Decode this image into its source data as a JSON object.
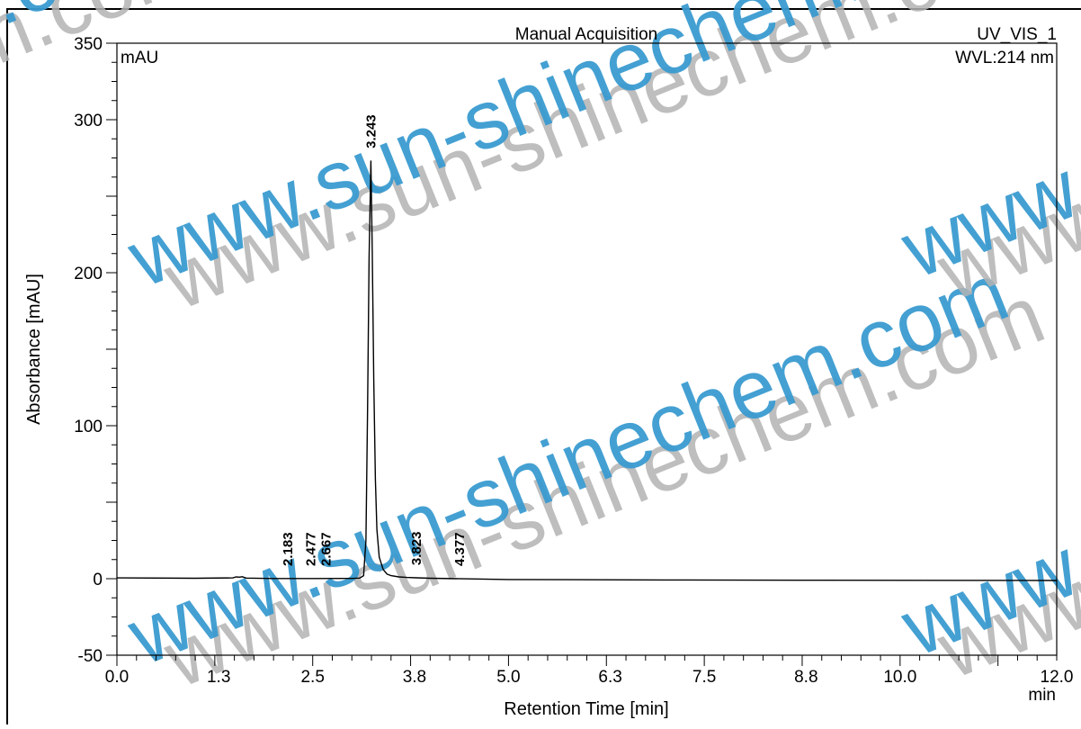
{
  "header": {
    "method": "Manual Acquisition",
    "channel": "UV_VIS_1",
    "wavelength": "WVL:214 nm"
  },
  "watermark": {
    "text": "www.sun-shinechem.com",
    "primary_color": "#3a9bd0",
    "secondary_color": "#b3b3b3"
  },
  "colors": {
    "trace": "#000000",
    "frame": "#000000",
    "background": "#ffffff"
  },
  "chart_data": {
    "type": "line",
    "title": "",
    "xlabel": "Retention Time [min]",
    "ylabel": "Absorbance [mAU]",
    "x_unit": "min",
    "y_unit": "mAU",
    "xlim": [
      0,
      12
    ],
    "ylim": [
      -50,
      350
    ],
    "x_ticks": [
      "0.0",
      "1.3",
      "2.5",
      "3.8",
      "5.0",
      "6.3",
      "7.5",
      "8.8",
      "10.0",
      "12.0"
    ],
    "y_ticks": [
      "-50",
      "0",
      "100",
      "200",
      "300",
      "350"
    ],
    "grid": false,
    "peaks": [
      {
        "label": "2.183",
        "rt": 2.183,
        "height": 0
      },
      {
        "label": "2.477",
        "rt": 2.477,
        "height": 0
      },
      {
        "label": "2.667",
        "rt": 2.667,
        "height": 0
      },
      {
        "label": "3.243",
        "rt": 3.243,
        "height": 273
      },
      {
        "label": "3.823",
        "rt": 3.823,
        "height": 0.5
      },
      {
        "label": "4.377",
        "rt": 4.377,
        "height": 0
      }
    ],
    "series": [
      {
        "x": [
          0.0,
          1.0,
          1.48,
          1.52,
          1.56,
          1.6,
          1.65,
          2.0,
          2.5,
          3.0,
          3.1,
          3.15,
          3.18,
          3.2,
          3.22,
          3.243,
          3.26,
          3.28,
          3.3,
          3.32,
          3.35,
          3.4,
          3.45,
          3.5,
          3.6,
          3.7,
          3.823,
          4.0,
          5.0,
          7.0,
          9.0,
          12.0
        ],
        "y": [
          0.5,
          0.3,
          0.5,
          1.2,
          1.0,
          1.3,
          0.4,
          0.1,
          0.1,
          0.2,
          0.4,
          2,
          25,
          110,
          210,
          273,
          215,
          130,
          65,
          32,
          14,
          6,
          3,
          2,
          1.2,
          0.8,
          0.6,
          0.3,
          -0.5,
          -0.8,
          -1.0,
          -1.2
        ]
      }
    ]
  }
}
